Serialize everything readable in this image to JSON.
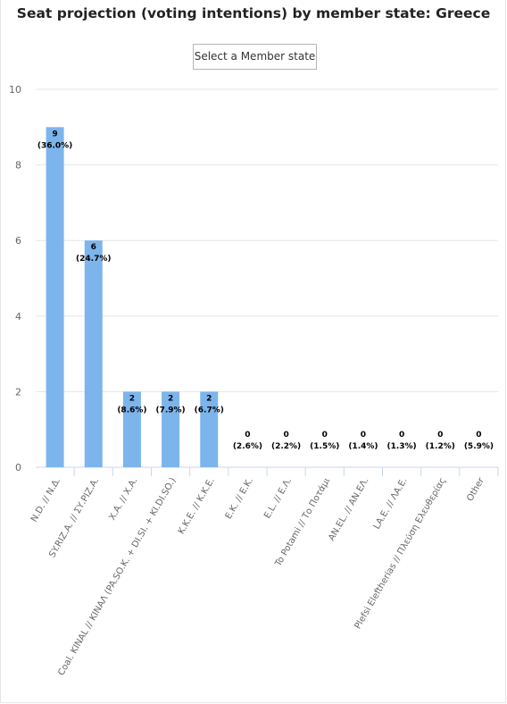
{
  "title": "Seat projection (voting intentions) by member state: Greece",
  "select_button": "Select a Member state",
  "colors": {
    "bar": "#7cb5ec",
    "grid": "#e6e6e6",
    "axis_text": "#666666",
    "label_text": "#000000"
  },
  "chart_data": {
    "type": "bar",
    "title": "Seat projection (voting intentions) by member state: Greece",
    "categories": [
      "N.D. // Ν.Δ.",
      "SY.RIZ.A. // ΣΥ.ΡΙΖ.Α.",
      "X.A. // Χ.Α.",
      "Coal. KINAL // ΚΙΝΑΛ (PA.SO.K. + DI.SI. + KI.DI.SO.)",
      "K.K.E. // Κ.Κ.Ε.",
      "E.K. // Ε.Κ.",
      "E.L. // Ε.Λ.",
      "To Potami // Το Ποτάμι",
      "AN.EL. // ΑΝ.ΕΛ.",
      "LA.E. // ΛΑ.Ε.",
      "Plefsi Eleftherias // Πλεύση Ελευθερίας",
      "Other"
    ],
    "values": [
      9,
      6,
      2,
      2,
      2,
      0,
      0,
      0,
      0,
      0,
      0,
      0
    ],
    "percent_labels": [
      "(36.0%)",
      "(24.7%)",
      "(8.6%)",
      "(7.9%)",
      "(6.7%)",
      "(2.6%)",
      "(2.2%)",
      "(1.5%)",
      "(1.4%)",
      "(1.3%)",
      "(1.2%)",
      "(5.9%)"
    ],
    "ylim": [
      0,
      10
    ],
    "yticks": [
      0,
      2,
      4,
      6,
      8,
      10
    ],
    "grid": true,
    "xlabel": "",
    "ylabel": ""
  }
}
